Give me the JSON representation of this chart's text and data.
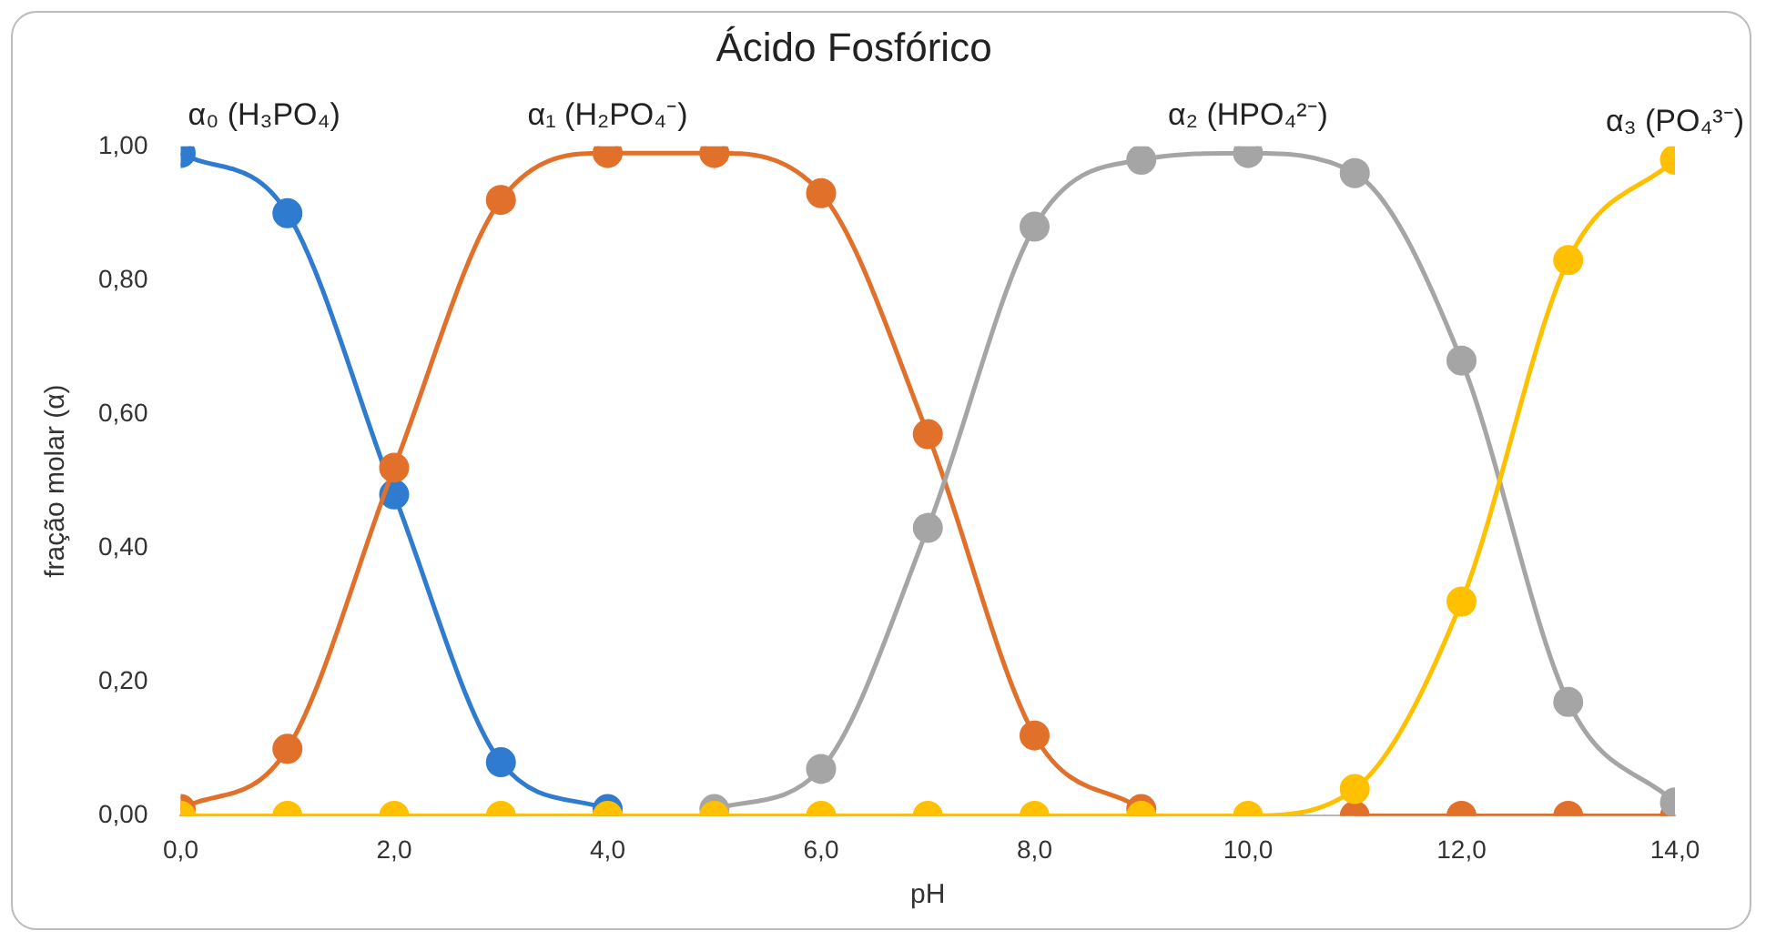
{
  "chart_data": {
    "type": "line",
    "title": "Ácido Fosfórico",
    "xlabel": "pH",
    "ylabel": "fração molar (α)",
    "x": [
      0,
      1,
      2,
      3,
      4,
      5,
      6,
      7,
      8,
      9,
      10,
      11,
      12,
      13,
      14
    ],
    "xlim": [
      0,
      14
    ],
    "xticks": [
      {
        "value": 0,
        "label": "0,0"
      },
      {
        "value": 2,
        "label": "2,0"
      },
      {
        "value": 4,
        "label": "4,0"
      },
      {
        "value": 6,
        "label": "6,0"
      },
      {
        "value": 8,
        "label": "8,0"
      },
      {
        "value": 10,
        "label": "10,0"
      },
      {
        "value": 12,
        "label": "12,0"
      },
      {
        "value": 14,
        "label": "14,0"
      }
    ],
    "ylim": [
      0,
      1
    ],
    "yticks": [
      {
        "value": 0,
        "label": "0,00"
      },
      {
        "value": 0.2,
        "label": "0,20"
      },
      {
        "value": 0.4,
        "label": "0,40"
      },
      {
        "value": 0.6,
        "label": "0,60"
      },
      {
        "value": 0.8,
        "label": "0,80"
      },
      {
        "value": 1,
        "label": "1,00"
      }
    ],
    "grid": false,
    "legend": false,
    "marker": "circle",
    "line_style": "solid",
    "series": [
      {
        "name": "α₀ (H₃PO₄)",
        "color": "#2e7bcf",
        "values": [
          0.99,
          0.9,
          0.48,
          0.08,
          0.01,
          null,
          null,
          null,
          null,
          null,
          null,
          null,
          null,
          null,
          null
        ]
      },
      {
        "name": "α₁ (H₂PO₄⁻)",
        "color": "#e0702a",
        "values": [
          0.01,
          0.1,
          0.52,
          0.92,
          0.99,
          0.99,
          0.93,
          0.57,
          0.12,
          0.01,
          null,
          0,
          0,
          0,
          0
        ]
      },
      {
        "name": "α₂ (HPO₄²⁻)",
        "color": "#a5a5a5",
        "values": [
          null,
          null,
          null,
          null,
          null,
          0.01,
          0.07,
          0.43,
          0.88,
          0.98,
          0.99,
          0.96,
          0.68,
          0.17,
          0.02
        ]
      },
      {
        "name": "α₃ (PO₄³⁻)",
        "color": "#ffc000",
        "values": [
          0,
          0,
          0,
          0,
          0,
          0,
          0,
          0,
          0,
          0,
          0,
          0.04,
          0.32,
          0.83,
          0.98
        ]
      }
    ]
  }
}
